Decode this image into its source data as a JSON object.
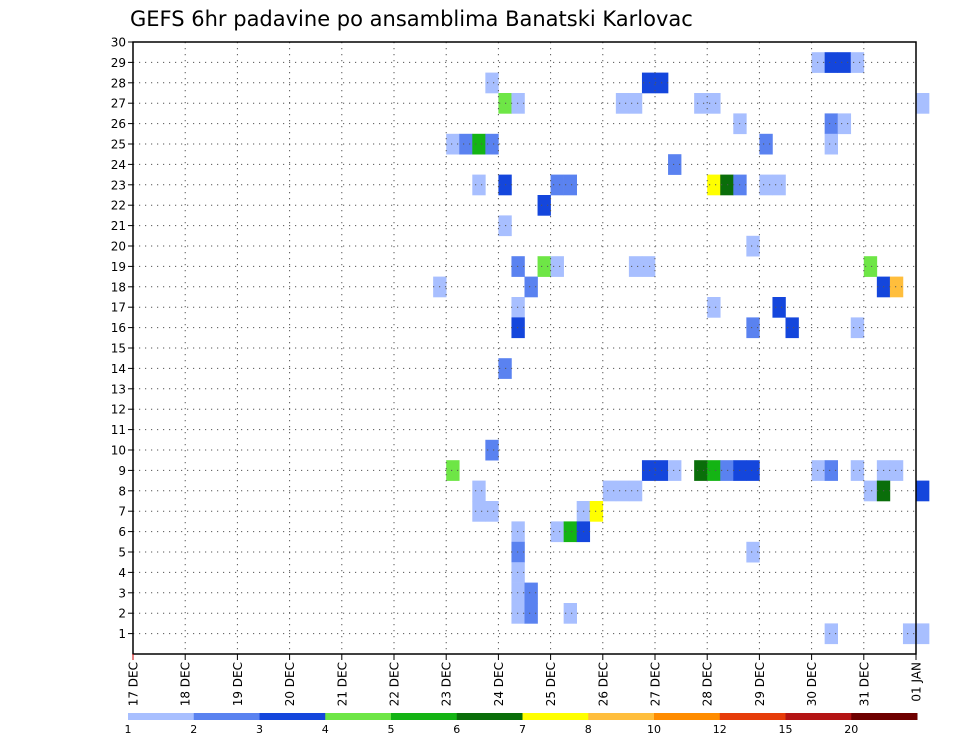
{
  "chart_data": {
    "type": "heatmap",
    "title": "GEFS 6hr padavine po ansamblima Banatski Karlovac",
    "x_tick_labels": [
      "17 DEC",
      "18 DEC",
      "19 DEC",
      "20 DEC",
      "21 DEC",
      "22 DEC",
      "23 DEC",
      "24 DEC",
      "25 DEC",
      "26 DEC",
      "27 DEC",
      "28 DEC",
      "29 DEC",
      "30 DEC",
      "31 DEC",
      "01 JAN"
    ],
    "y_tick_labels": [
      "1",
      "2",
      "3",
      "4",
      "5",
      "6",
      "7",
      "8",
      "9",
      "10",
      "11",
      "12",
      "13",
      "14",
      "15",
      "16",
      "17",
      "18",
      "19",
      "20",
      "21",
      "22",
      "23",
      "24",
      "25",
      "26",
      "27",
      "28",
      "29",
      "30"
    ],
    "xlim": [
      0,
      15.25
    ],
    "ylim": [
      0,
      30
    ],
    "grid": true,
    "legend": {
      "placement": "bottom",
      "labels": [
        "1",
        "2",
        "3",
        "4",
        "5",
        "6",
        "7",
        "8",
        "10",
        "12",
        "15",
        "20"
      ],
      "colors": [
        "#a8bfff",
        "#5a82f0",
        "#1446dc",
        "#6ee646",
        "#14b414",
        "#0a6e0a",
        "#ffff00",
        "#ffbe3c",
        "#ff8c00",
        "#e63c0a",
        "#b41414",
        "#6e0000"
      ]
    },
    "cells": [
      {
        "x": 13.0,
        "y": 29,
        "c": 0
      },
      {
        "x": 13.25,
        "y": 29,
        "c": 2
      },
      {
        "x": 13.5,
        "y": 29,
        "c": 2
      },
      {
        "x": 13.75,
        "y": 29,
        "c": 0
      },
      {
        "x": 6.75,
        "y": 28,
        "c": 0
      },
      {
        "x": 9.75,
        "y": 28,
        "c": 2
      },
      {
        "x": 10.0,
        "y": 28,
        "c": 2
      },
      {
        "x": 7.0,
        "y": 27,
        "c": 3
      },
      {
        "x": 7.25,
        "y": 27,
        "c": 0
      },
      {
        "x": 9.25,
        "y": 27,
        "c": 0
      },
      {
        "x": 9.5,
        "y": 27,
        "c": 0
      },
      {
        "x": 10.75,
        "y": 27,
        "c": 0
      },
      {
        "x": 11.0,
        "y": 27,
        "c": 0
      },
      {
        "x": 15.0,
        "y": 27,
        "c": 0
      },
      {
        "x": 11.5,
        "y": 26,
        "c": 0
      },
      {
        "x": 13.25,
        "y": 26,
        "c": 1
      },
      {
        "x": 13.5,
        "y": 26,
        "c": 0
      },
      {
        "x": 6.0,
        "y": 25,
        "c": 0
      },
      {
        "x": 6.25,
        "y": 25,
        "c": 1
      },
      {
        "x": 6.5,
        "y": 25,
        "c": 4
      },
      {
        "x": 6.75,
        "y": 25,
        "c": 1
      },
      {
        "x": 12.0,
        "y": 25,
        "c": 1
      },
      {
        "x": 13.25,
        "y": 25,
        "c": 0
      },
      {
        "x": 10.25,
        "y": 24,
        "c": 1
      },
      {
        "x": 6.5,
        "y": 23,
        "c": 0
      },
      {
        "x": 7.0,
        "y": 23,
        "c": 2
      },
      {
        "x": 8.0,
        "y": 23,
        "c": 1
      },
      {
        "x": 8.25,
        "y": 23,
        "c": 1
      },
      {
        "x": 11.0,
        "y": 23,
        "c": 6
      },
      {
        "x": 11.25,
        "y": 23,
        "c": 5
      },
      {
        "x": 11.5,
        "y": 23,
        "c": 1
      },
      {
        "x": 12.0,
        "y": 23,
        "c": 0
      },
      {
        "x": 12.25,
        "y": 23,
        "c": 0
      },
      {
        "x": 7.75,
        "y": 22,
        "c": 2
      },
      {
        "x": 7.0,
        "y": 21,
        "c": 0
      },
      {
        "x": 11.75,
        "y": 20,
        "c": 0
      },
      {
        "x": 7.25,
        "y": 19,
        "c": 1
      },
      {
        "x": 7.75,
        "y": 19,
        "c": 3
      },
      {
        "x": 8.0,
        "y": 19,
        "c": 0
      },
      {
        "x": 9.5,
        "y": 19,
        "c": 0
      },
      {
        "x": 9.75,
        "y": 19,
        "c": 0
      },
      {
        "x": 14.0,
        "y": 19,
        "c": 3
      },
      {
        "x": 5.75,
        "y": 18,
        "c": 0
      },
      {
        "x": 7.5,
        "y": 18,
        "c": 1
      },
      {
        "x": 14.25,
        "y": 18,
        "c": 2
      },
      {
        "x": 14.5,
        "y": 18,
        "c": 7
      },
      {
        "x": 7.25,
        "y": 17,
        "c": 0
      },
      {
        "x": 11.0,
        "y": 17,
        "c": 0
      },
      {
        "x": 12.25,
        "y": 17,
        "c": 2
      },
      {
        "x": 7.25,
        "y": 16,
        "c": 2
      },
      {
        "x": 11.75,
        "y": 16,
        "c": 1
      },
      {
        "x": 12.5,
        "y": 16,
        "c": 2
      },
      {
        "x": 13.75,
        "y": 16,
        "c": 0
      },
      {
        "x": 7.0,
        "y": 14,
        "c": 1
      },
      {
        "x": 6.75,
        "y": 10,
        "c": 1
      },
      {
        "x": 6.0,
        "y": 9,
        "c": 3
      },
      {
        "x": 9.75,
        "y": 9,
        "c": 2
      },
      {
        "x": 10.0,
        "y": 9,
        "c": 2
      },
      {
        "x": 10.25,
        "y": 9,
        "c": 0
      },
      {
        "x": 10.75,
        "y": 9,
        "c": 5
      },
      {
        "x": 11.0,
        "y": 9,
        "c": 4
      },
      {
        "x": 11.25,
        "y": 9,
        "c": 1
      },
      {
        "x": 11.5,
        "y": 9,
        "c": 2
      },
      {
        "x": 11.75,
        "y": 9,
        "c": 2
      },
      {
        "x": 13.0,
        "y": 9,
        "c": 0
      },
      {
        "x": 13.25,
        "y": 9,
        "c": 1
      },
      {
        "x": 13.75,
        "y": 9,
        "c": 0
      },
      {
        "x": 14.25,
        "y": 9,
        "c": 0
      },
      {
        "x": 14.5,
        "y": 9,
        "c": 0
      },
      {
        "x": 6.5,
        "y": 8,
        "c": 0
      },
      {
        "x": 9.0,
        "y": 8,
        "c": 0
      },
      {
        "x": 9.25,
        "y": 8,
        "c": 0
      },
      {
        "x": 9.5,
        "y": 8,
        "c": 0
      },
      {
        "x": 14.0,
        "y": 8,
        "c": 0
      },
      {
        "x": 14.25,
        "y": 8,
        "c": 5
      },
      {
        "x": 15.0,
        "y": 8,
        "c": 2
      },
      {
        "x": 6.5,
        "y": 7,
        "c": 0
      },
      {
        "x": 6.75,
        "y": 7,
        "c": 0
      },
      {
        "x": 8.5,
        "y": 7,
        "c": 0
      },
      {
        "x": 8.75,
        "y": 7,
        "c": 6
      },
      {
        "x": 7.25,
        "y": 6,
        "c": 0
      },
      {
        "x": 8.0,
        "y": 6,
        "c": 0
      },
      {
        "x": 8.25,
        "y": 6,
        "c": 4
      },
      {
        "x": 8.5,
        "y": 6,
        "c": 2
      },
      {
        "x": 7.25,
        "y": 5,
        "c": 1
      },
      {
        "x": 11.75,
        "y": 5,
        "c": 0
      },
      {
        "x": 7.25,
        "y": 4,
        "c": 0
      },
      {
        "x": 7.25,
        "y": 3,
        "c": 0
      },
      {
        "x": 7.5,
        "y": 3,
        "c": 1
      },
      {
        "x": 7.25,
        "y": 2,
        "c": 0
      },
      {
        "x": 7.5,
        "y": 2,
        "c": 1
      },
      {
        "x": 8.25,
        "y": 2,
        "c": 0
      },
      {
        "x": 13.25,
        "y": 1,
        "c": 0
      },
      {
        "x": 14.75,
        "y": 1,
        "c": 0
      },
      {
        "x": 15.0,
        "y": 1,
        "c": 0
      }
    ]
  }
}
